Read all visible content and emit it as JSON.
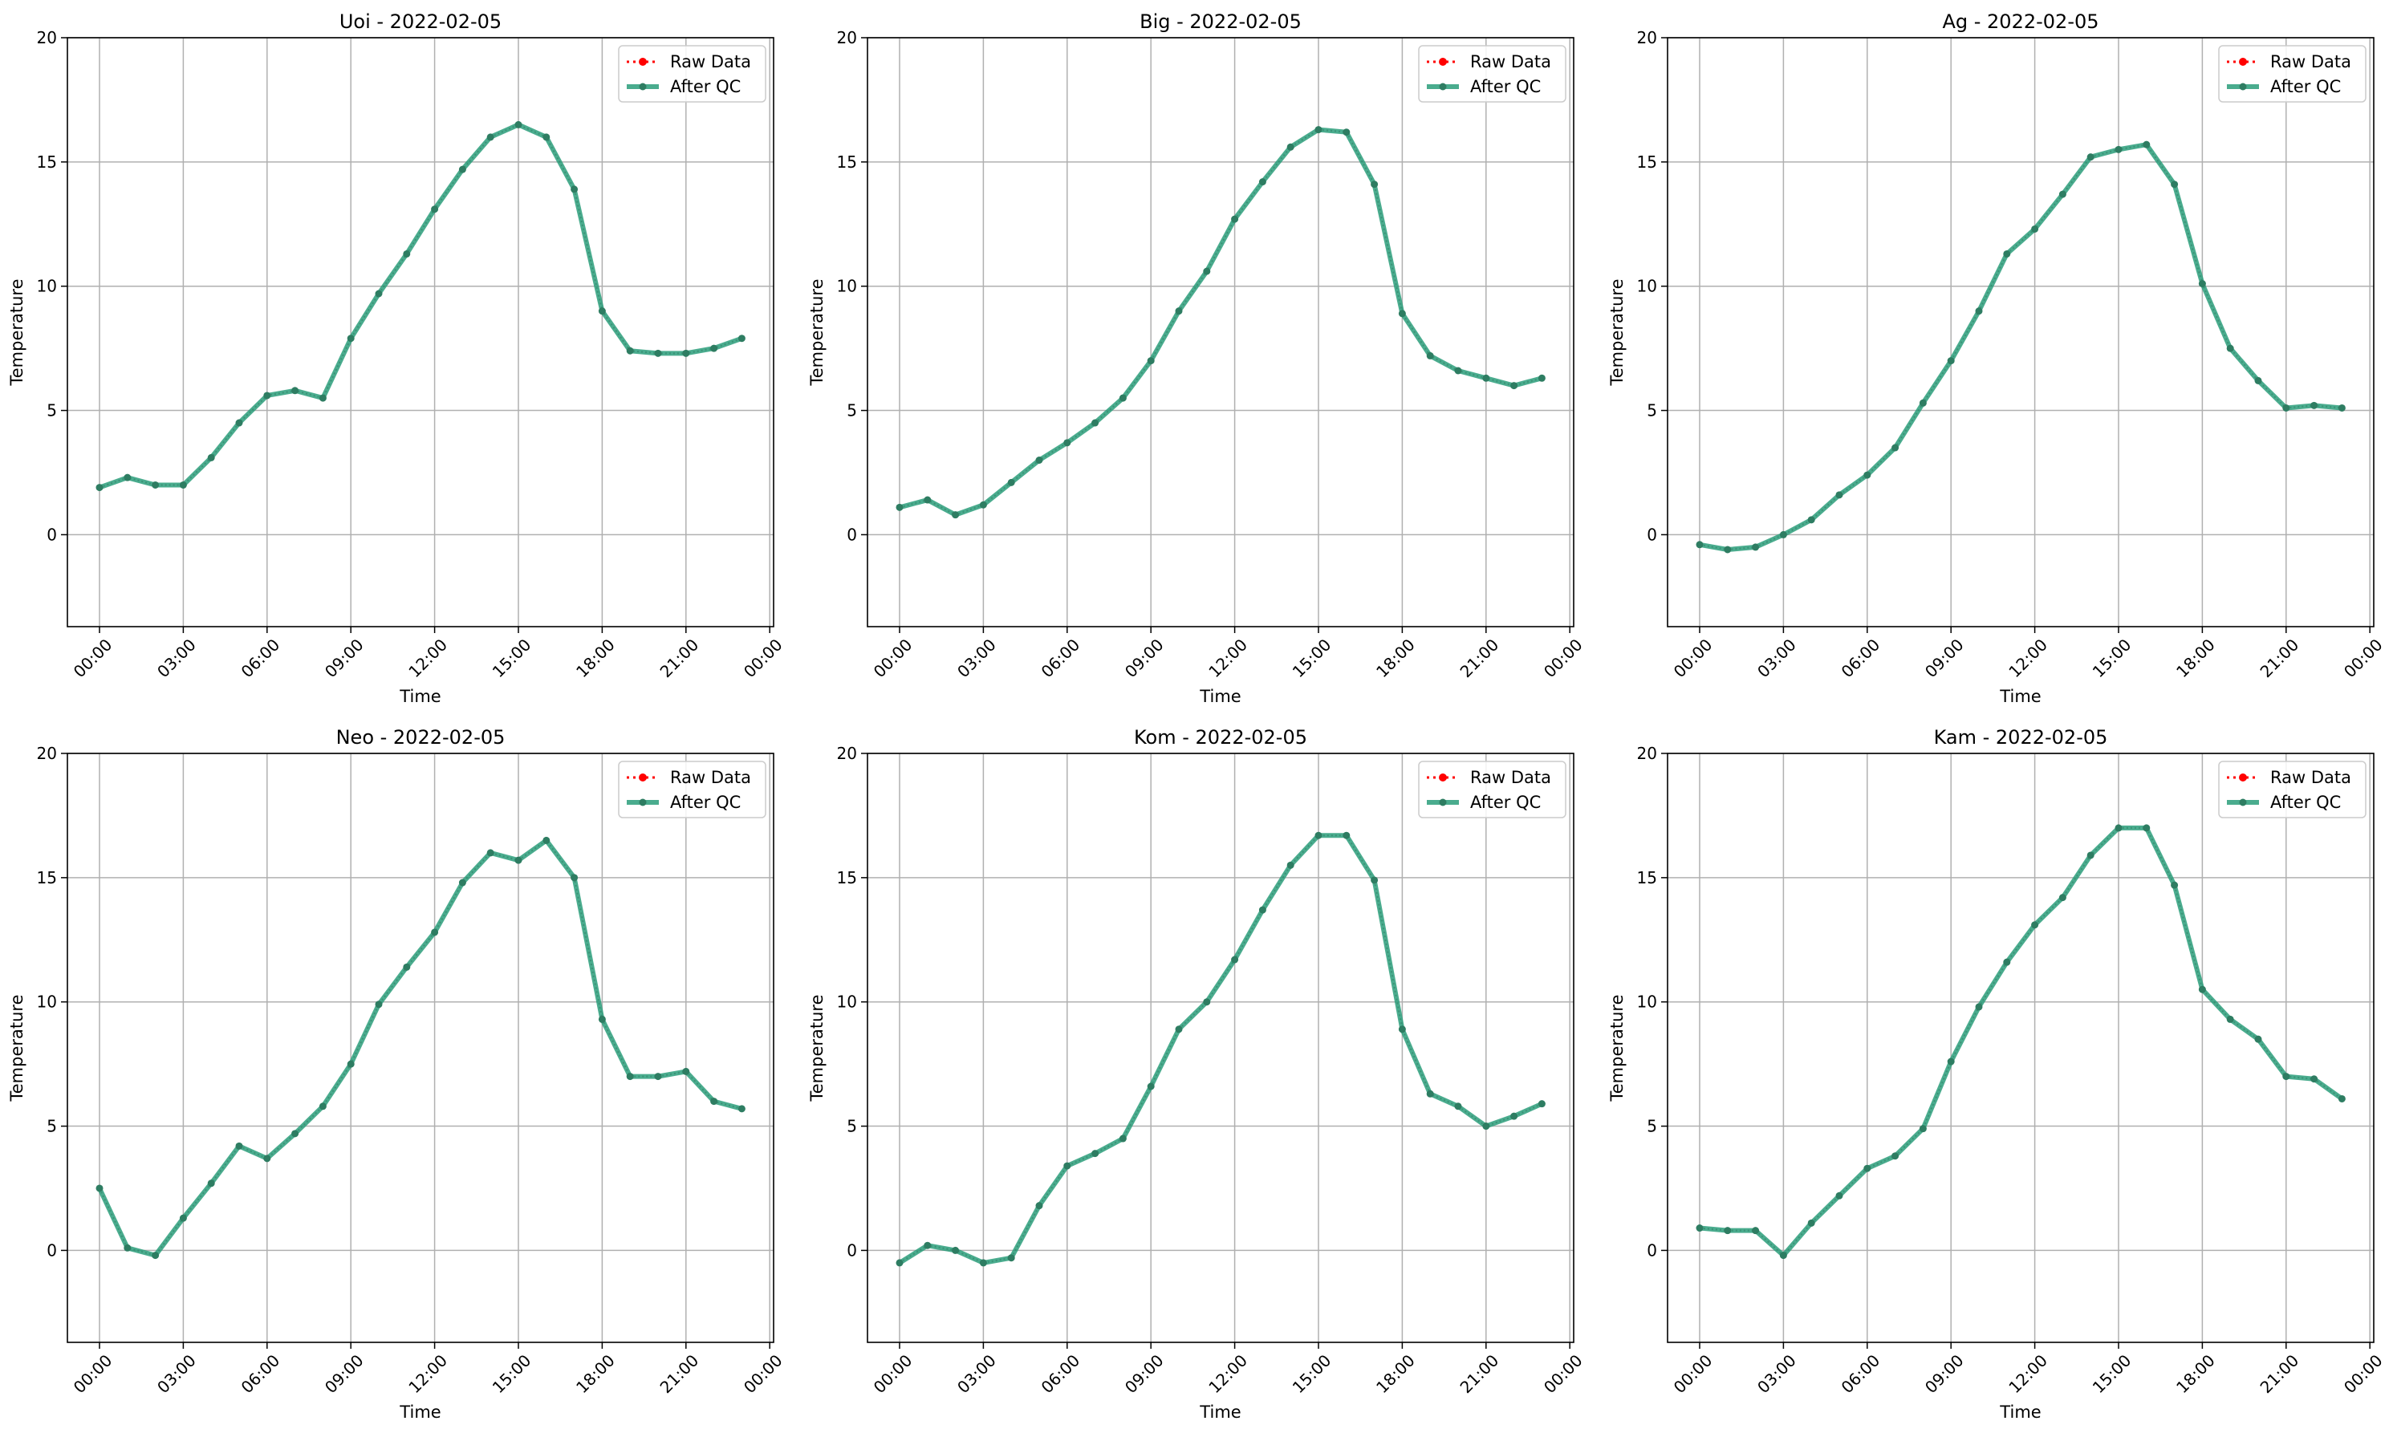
{
  "figure": {
    "colors": {
      "raw": "#ff0000",
      "qc": "#2a9d7a",
      "qc_marker": "#2e7d62",
      "grid": "#b0b0b0"
    }
  },
  "chart_data": [
    {
      "type": "line",
      "title": "Uoi - 2022-02-05",
      "xlabel": "Time",
      "ylabel": "Temperature",
      "ylim": [
        -3.7,
        20
      ],
      "yticks": [
        0,
        5,
        10,
        15,
        20
      ],
      "xticks": [
        "00:00",
        "03:00",
        "06:00",
        "09:00",
        "12:00",
        "15:00",
        "18:00",
        "21:00",
        "00:00"
      ],
      "grid": true,
      "legend": "top-right",
      "x": [
        "00:00",
        "01:00",
        "02:00",
        "03:00",
        "04:00",
        "05:00",
        "06:00",
        "07:00",
        "08:00",
        "09:00",
        "10:00",
        "11:00",
        "12:00",
        "13:00",
        "14:00",
        "15:00",
        "16:00",
        "17:00",
        "18:00",
        "19:00",
        "20:00",
        "21:00",
        "22:00",
        "23:00"
      ],
      "series": [
        {
          "name": "Raw Data",
          "values": [
            1.9,
            2.3,
            2.0,
            2.0,
            3.1,
            4.5,
            5.6,
            5.8,
            5.5,
            7.9,
            9.7,
            11.3,
            13.1,
            14.7,
            16.0,
            16.5,
            16.0,
            13.9,
            9.0,
            7.4,
            7.3,
            7.3,
            7.5,
            7.9
          ]
        },
        {
          "name": "After QC",
          "values": [
            1.9,
            2.3,
            2.0,
            2.0,
            3.1,
            4.5,
            5.6,
            5.8,
            5.5,
            7.9,
            9.7,
            11.3,
            13.1,
            14.7,
            16.0,
            16.5,
            16.0,
            13.9,
            9.0,
            7.4,
            7.3,
            7.3,
            7.5,
            7.9
          ]
        }
      ]
    },
    {
      "type": "line",
      "title": "Big - 2022-02-05",
      "xlabel": "Time",
      "ylabel": "Temperature",
      "ylim": [
        -3.7,
        20
      ],
      "yticks": [
        0,
        5,
        10,
        15,
        20
      ],
      "xticks": [
        "00:00",
        "03:00",
        "06:00",
        "09:00",
        "12:00",
        "15:00",
        "18:00",
        "21:00",
        "00:00"
      ],
      "grid": true,
      "legend": "top-right",
      "x": [
        "00:00",
        "01:00",
        "02:00",
        "03:00",
        "04:00",
        "05:00",
        "06:00",
        "07:00",
        "08:00",
        "09:00",
        "10:00",
        "11:00",
        "12:00",
        "13:00",
        "14:00",
        "15:00",
        "16:00",
        "17:00",
        "18:00",
        "19:00",
        "20:00",
        "21:00",
        "22:00",
        "23:00"
      ],
      "series": [
        {
          "name": "Raw Data",
          "values": [
            1.1,
            1.4,
            0.8,
            1.2,
            2.1,
            3.0,
            3.7,
            4.5,
            5.5,
            7.0,
            9.0,
            10.6,
            12.7,
            14.2,
            15.6,
            16.3,
            16.2,
            14.1,
            8.9,
            7.2,
            6.6,
            6.3,
            6.0,
            6.3
          ]
        },
        {
          "name": "After QC",
          "values": [
            1.1,
            1.4,
            0.8,
            1.2,
            2.1,
            3.0,
            3.7,
            4.5,
            5.5,
            7.0,
            9.0,
            10.6,
            12.7,
            14.2,
            15.6,
            16.3,
            16.2,
            14.1,
            8.9,
            7.2,
            6.6,
            6.3,
            6.0,
            6.3
          ]
        }
      ]
    },
    {
      "type": "line",
      "title": "Ag - 2022-02-05",
      "xlabel": "Time",
      "ylabel": "Temperature",
      "ylim": [
        -3.7,
        20
      ],
      "yticks": [
        0,
        5,
        10,
        15,
        20
      ],
      "xticks": [
        "00:00",
        "03:00",
        "06:00",
        "09:00",
        "12:00",
        "15:00",
        "18:00",
        "21:00",
        "00:00"
      ],
      "grid": true,
      "legend": "top-right",
      "x": [
        "00:00",
        "01:00",
        "02:00",
        "03:00",
        "04:00",
        "05:00",
        "06:00",
        "07:00",
        "08:00",
        "09:00",
        "10:00",
        "11:00",
        "12:00",
        "13:00",
        "14:00",
        "15:00",
        "16:00",
        "17:00",
        "18:00",
        "19:00",
        "20:00",
        "21:00",
        "22:00",
        "23:00"
      ],
      "series": [
        {
          "name": "Raw Data",
          "values": [
            -0.4,
            -0.6,
            -0.5,
            0.0,
            0.6,
            1.6,
            2.4,
            3.5,
            5.3,
            7.0,
            9.0,
            11.3,
            12.3,
            13.7,
            15.2,
            15.5,
            15.7,
            14.1,
            10.1,
            7.5,
            6.2,
            5.1,
            5.2,
            5.1
          ]
        },
        {
          "name": "After QC",
          "values": [
            -0.4,
            -0.6,
            -0.5,
            0.0,
            0.6,
            1.6,
            2.4,
            3.5,
            5.3,
            7.0,
            9.0,
            11.3,
            12.3,
            13.7,
            15.2,
            15.5,
            15.7,
            14.1,
            10.1,
            7.5,
            6.2,
            5.1,
            5.2,
            5.1
          ]
        }
      ]
    },
    {
      "type": "line",
      "title": "Neo - 2022-02-05",
      "xlabel": "Time",
      "ylabel": "Temperature",
      "ylim": [
        -3.7,
        20
      ],
      "yticks": [
        0,
        5,
        10,
        15,
        20
      ],
      "xticks": [
        "00:00",
        "03:00",
        "06:00",
        "09:00",
        "12:00",
        "15:00",
        "18:00",
        "21:00",
        "00:00"
      ],
      "grid": true,
      "legend": "top-right",
      "x": [
        "00:00",
        "01:00",
        "02:00",
        "03:00",
        "04:00",
        "05:00",
        "06:00",
        "07:00",
        "08:00",
        "09:00",
        "10:00",
        "11:00",
        "12:00",
        "13:00",
        "14:00",
        "15:00",
        "16:00",
        "17:00",
        "18:00",
        "19:00",
        "20:00",
        "21:00",
        "22:00",
        "23:00"
      ],
      "series": [
        {
          "name": "Raw Data",
          "values": [
            2.5,
            0.1,
            -0.2,
            1.3,
            2.7,
            4.2,
            3.7,
            4.7,
            5.8,
            7.5,
            9.9,
            11.4,
            12.8,
            14.8,
            16.0,
            15.7,
            16.5,
            15.0,
            9.3,
            7.0,
            7.0,
            7.2,
            6.0,
            5.7
          ]
        },
        {
          "name": "After QC",
          "values": [
            2.5,
            0.1,
            -0.2,
            1.3,
            2.7,
            4.2,
            3.7,
            4.7,
            5.8,
            7.5,
            9.9,
            11.4,
            12.8,
            14.8,
            16.0,
            15.7,
            16.5,
            15.0,
            9.3,
            7.0,
            7.0,
            7.2,
            6.0,
            5.7
          ]
        }
      ]
    },
    {
      "type": "line",
      "title": "Kom - 2022-02-05",
      "xlabel": "Time",
      "ylabel": "Temperature",
      "ylim": [
        -3.7,
        20
      ],
      "yticks": [
        0,
        5,
        10,
        15,
        20
      ],
      "xticks": [
        "00:00",
        "03:00",
        "06:00",
        "09:00",
        "12:00",
        "15:00",
        "18:00",
        "21:00",
        "00:00"
      ],
      "grid": true,
      "legend": "top-right",
      "x": [
        "00:00",
        "01:00",
        "02:00",
        "03:00",
        "04:00",
        "05:00",
        "06:00",
        "07:00",
        "08:00",
        "09:00",
        "10:00",
        "11:00",
        "12:00",
        "13:00",
        "14:00",
        "15:00",
        "16:00",
        "17:00",
        "18:00",
        "19:00",
        "20:00",
        "21:00",
        "22:00",
        "23:00"
      ],
      "series": [
        {
          "name": "Raw Data",
          "values": [
            -0.5,
            0.2,
            0.0,
            -0.5,
            -0.3,
            1.8,
            3.4,
            3.9,
            4.5,
            6.6,
            8.9,
            10.0,
            11.7,
            13.7,
            15.5,
            16.7,
            16.7,
            14.9,
            8.9,
            6.3,
            5.8,
            5.0,
            5.4,
            5.9
          ]
        },
        {
          "name": "After QC",
          "values": [
            -0.5,
            0.2,
            0.0,
            -0.5,
            -0.3,
            1.8,
            3.4,
            3.9,
            4.5,
            6.6,
            8.9,
            10.0,
            11.7,
            13.7,
            15.5,
            16.7,
            16.7,
            14.9,
            8.9,
            6.3,
            5.8,
            5.0,
            5.4,
            5.9
          ]
        }
      ]
    },
    {
      "type": "line",
      "title": "Kam - 2022-02-05",
      "xlabel": "Time",
      "ylabel": "Temperature",
      "ylim": [
        -3.7,
        20
      ],
      "yticks": [
        0,
        5,
        10,
        15,
        20
      ],
      "xticks": [
        "00:00",
        "03:00",
        "06:00",
        "09:00",
        "12:00",
        "15:00",
        "18:00",
        "21:00",
        "00:00"
      ],
      "grid": true,
      "legend": "top-right",
      "x": [
        "00:00",
        "01:00",
        "02:00",
        "03:00",
        "04:00",
        "05:00",
        "06:00",
        "07:00",
        "08:00",
        "09:00",
        "10:00",
        "11:00",
        "12:00",
        "13:00",
        "14:00",
        "15:00",
        "16:00",
        "17:00",
        "18:00",
        "19:00",
        "20:00",
        "21:00",
        "22:00",
        "23:00"
      ],
      "series": [
        {
          "name": "Raw Data",
          "values": [
            0.9,
            0.8,
            0.8,
            -0.2,
            1.1,
            2.2,
            3.3,
            3.8,
            4.9,
            7.6,
            9.8,
            11.6,
            13.1,
            14.2,
            15.9,
            17.0,
            17.0,
            14.7,
            10.5,
            9.3,
            8.5,
            7.0,
            6.9,
            6.1
          ]
        },
        {
          "name": "After QC",
          "values": [
            0.9,
            0.8,
            0.8,
            -0.2,
            1.1,
            2.2,
            3.3,
            3.8,
            4.9,
            7.6,
            9.8,
            11.6,
            13.1,
            14.2,
            15.9,
            17.0,
            17.0,
            14.7,
            10.5,
            9.3,
            8.5,
            7.0,
            6.9,
            6.1
          ]
        }
      ]
    }
  ]
}
